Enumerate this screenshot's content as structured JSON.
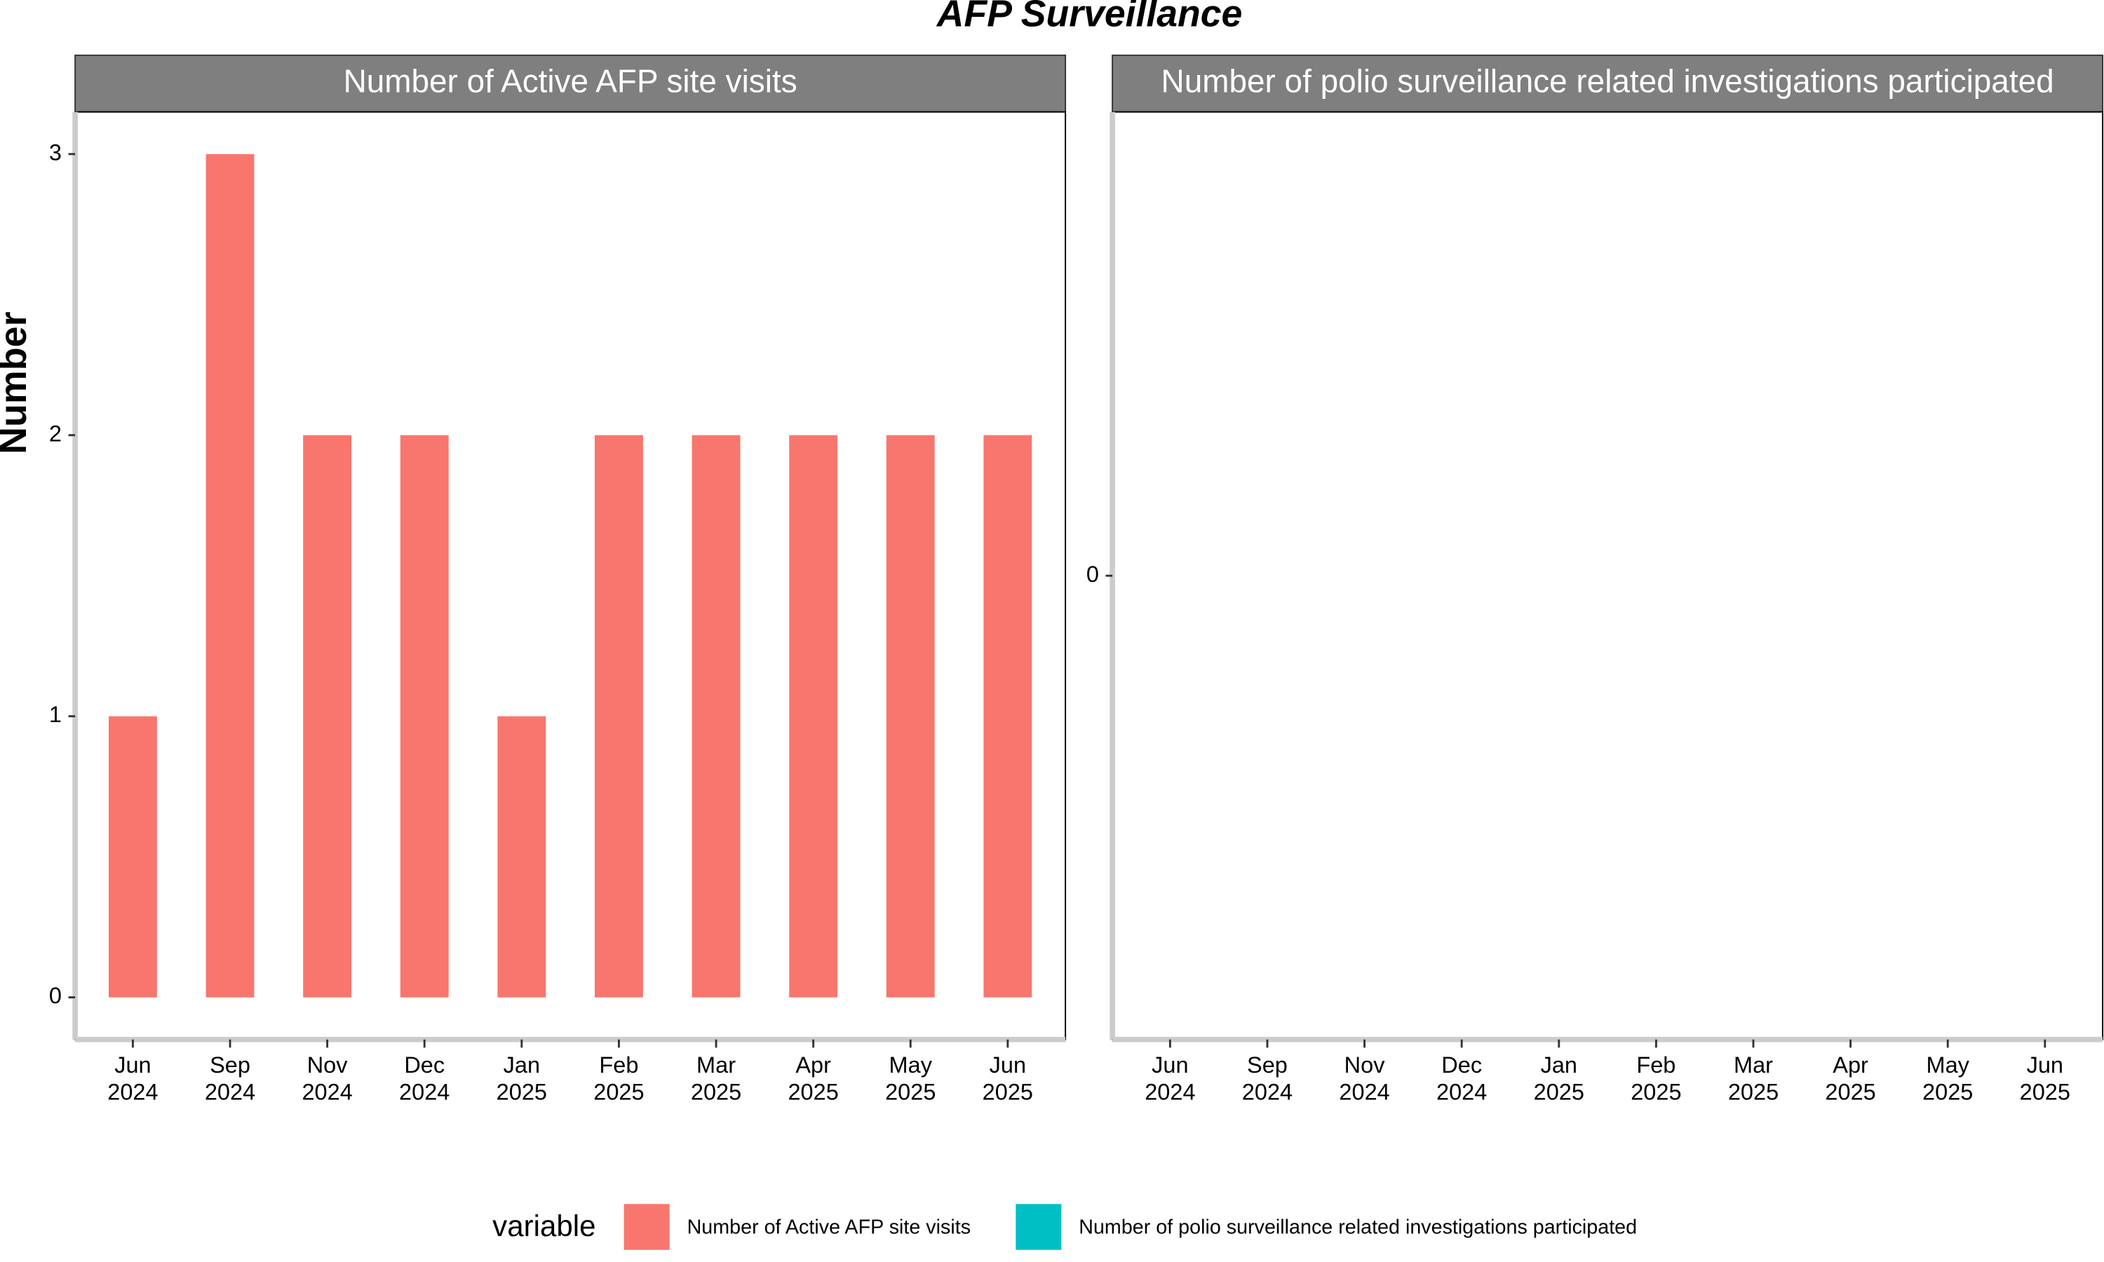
{
  "title": "AFP Surveillance",
  "y_label": "Number",
  "legend": {
    "title": "variable",
    "position": "bottom"
  },
  "chart_data": [
    {
      "type": "bar",
      "title": "Number of Active AFP site visits",
      "categories": [
        "Jun 2024",
        "Sep 2024",
        "Nov 2024",
        "Dec 2024",
        "Jan 2025",
        "Feb 2025",
        "Mar 2025",
        "Apr 2025",
        "May 2025",
        "Jun 2025"
      ],
      "series": [
        {
          "name": "Number of Active AFP site visits",
          "color": "#F8766D",
          "values": [
            1,
            3,
            2,
            2,
            1,
            2,
            2,
            2,
            2,
            2
          ]
        }
      ],
      "ylim": [
        -0.15,
        3.15
      ],
      "yticks": [
        0,
        1,
        2,
        3
      ]
    },
    {
      "type": "bar",
      "title": "Number of polio surveillance related investigations participated",
      "categories": [
        "Jun 2024",
        "Sep 2024",
        "Nov 2024",
        "Dec 2024",
        "Jan 2025",
        "Feb 2025",
        "Mar 2025",
        "Apr 2025",
        "May 2025",
        "Jun 2025"
      ],
      "series": [
        {
          "name": "Number of polio surveillance related investigations participated",
          "color": "#00BFC4",
          "values": [
            0,
            0,
            0,
            0,
            0,
            0,
            0,
            0,
            0,
            0
          ]
        }
      ],
      "ylim": [
        -1,
        1
      ],
      "yticks": [
        0
      ]
    }
  ]
}
